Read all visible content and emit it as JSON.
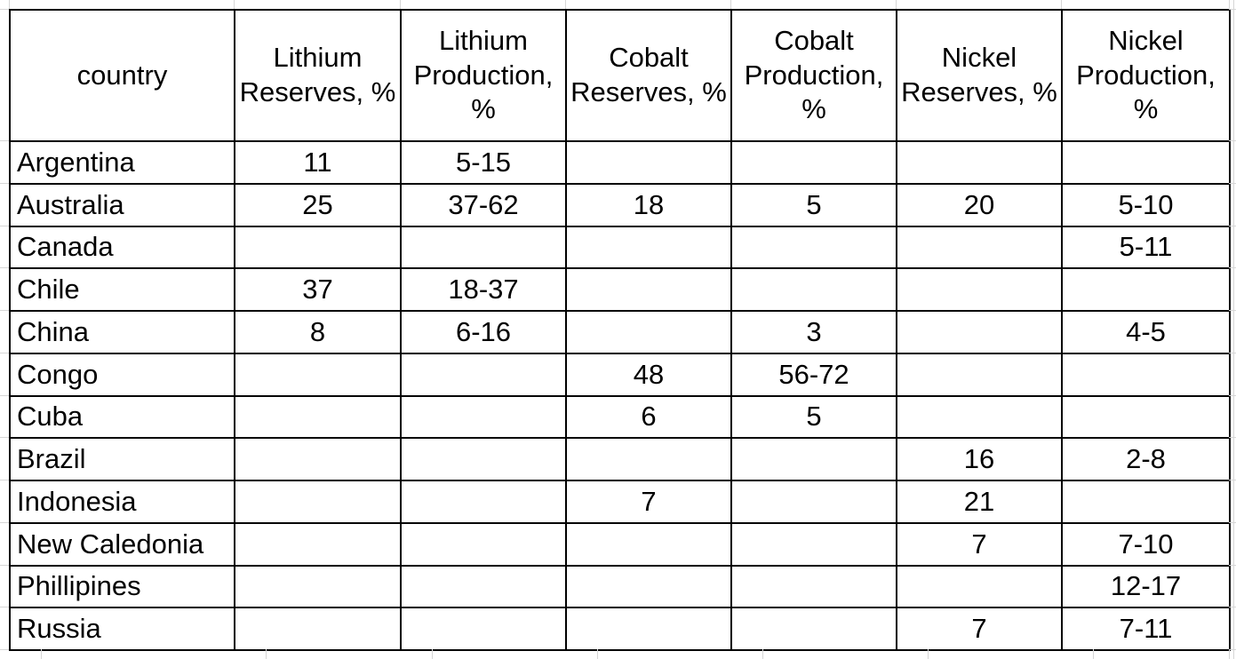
{
  "chart_data": {
    "type": "table",
    "columns": [
      "country",
      "Lithium Reserves, %",
      "Lithium Production, %",
      "Cobalt Reserves, %",
      "Cobalt Production, %",
      "Nickel Reserves, %",
      "Nickel Production, %"
    ],
    "rows": [
      {
        "country": "Argentina",
        "values": [
          "11",
          "5-15",
          "",
          "",
          "",
          ""
        ]
      },
      {
        "country": "Australia",
        "values": [
          "25",
          "37-62",
          "18",
          "5",
          "20",
          "5-10"
        ]
      },
      {
        "country": "Canada",
        "values": [
          "",
          "",
          "",
          "",
          "",
          "5-11"
        ]
      },
      {
        "country": "Chile",
        "values": [
          "37",
          "18-37",
          "",
          "",
          "",
          ""
        ]
      },
      {
        "country": "China",
        "values": [
          "8",
          "6-16",
          "",
          "3",
          "",
          "4-5"
        ]
      },
      {
        "country": "Congo",
        "values": [
          "",
          "",
          "48",
          "56-72",
          "",
          ""
        ]
      },
      {
        "country": "Cuba",
        "values": [
          "",
          "",
          "6",
          "5",
          "",
          ""
        ]
      },
      {
        "country": "Brazil",
        "values": [
          "",
          "",
          "",
          "",
          "16",
          "2-8"
        ]
      },
      {
        "country": "Indonesia",
        "values": [
          "",
          "",
          "7",
          "",
          "21",
          ""
        ]
      },
      {
        "country": "New Caledonia",
        "values": [
          "",
          "",
          "",
          "",
          "7",
          "7-10"
        ]
      },
      {
        "country": "Phillipines",
        "values": [
          "",
          "",
          "",
          "",
          "",
          "12-17"
        ]
      },
      {
        "country": "Russia",
        "values": [
          "",
          "",
          "",
          "",
          "7",
          "7-11"
        ]
      }
    ],
    "layout": {
      "grid": "on",
      "header_wrapped": true,
      "values_are_percent": true
    }
  },
  "colors": {
    "border": "#000000",
    "gridline": "#d6d6d6",
    "text": "#000000",
    "background": "#ffffff"
  }
}
